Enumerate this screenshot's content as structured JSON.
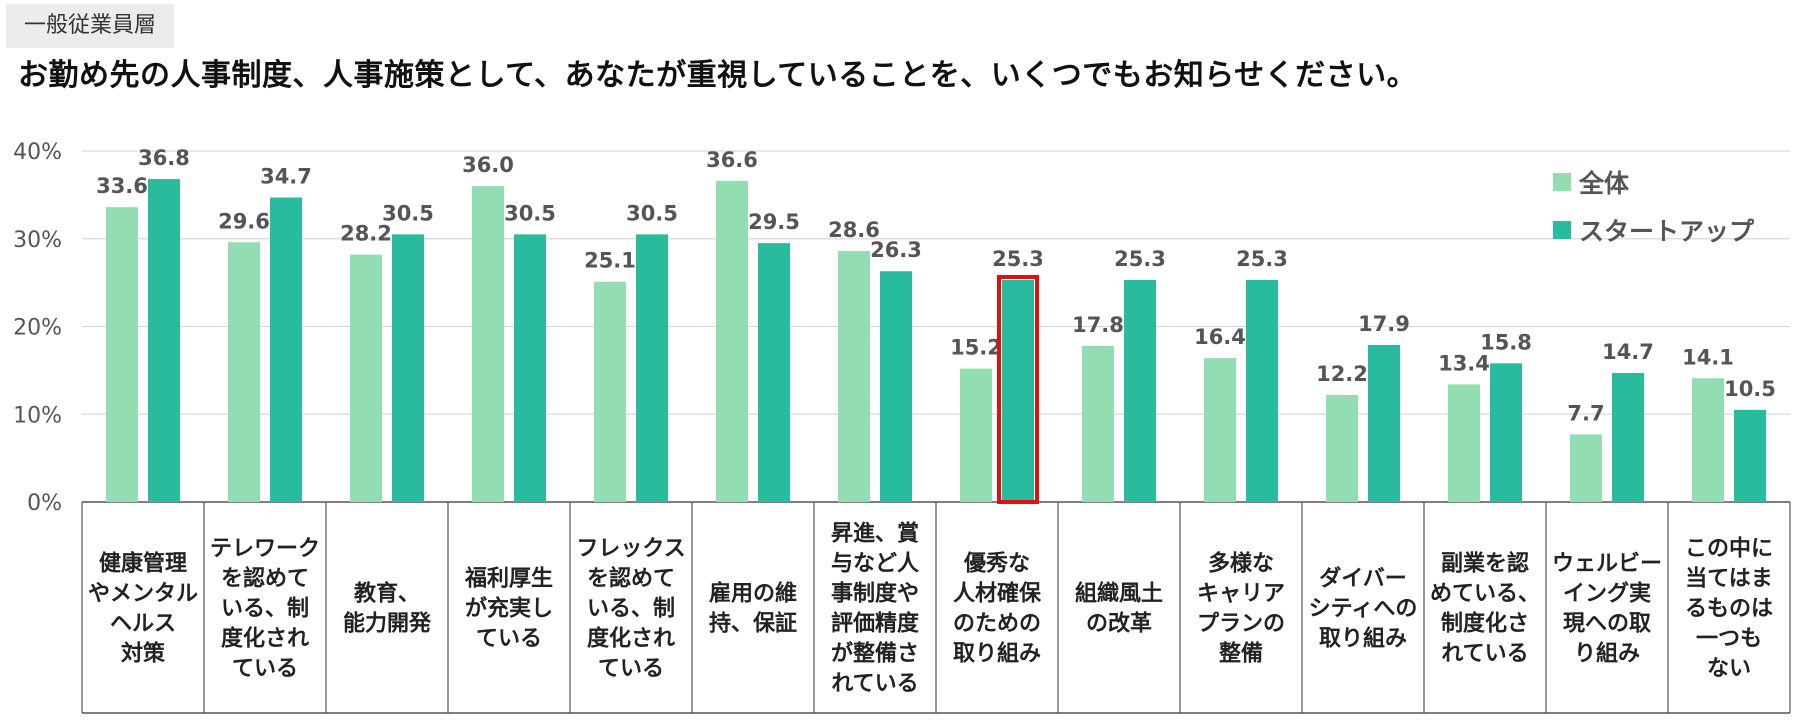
{
  "header": {
    "segment_tag": "一般従業員層",
    "question": "お勤め先の人事制度、人事施策として、あなたが重視していることを、いくつでもお知らせください。"
  },
  "colors": {
    "all": "#93ddb3",
    "startup": "#28bb9d",
    "highlight": "#e01010",
    "grid": "#d9d9d9"
  },
  "chart_data": {
    "type": "bar",
    "ylim": [
      0,
      40
    ],
    "yticks": [
      "0%",
      "10%",
      "20%",
      "30%",
      "40%"
    ],
    "grid": true,
    "legend_position": "top-right",
    "categories": [
      [
        "健康管理",
        "やメンタル",
        "ヘルス",
        "対策"
      ],
      [
        "テレワーク",
        "を認めて",
        "いる、制",
        "度化され",
        "ている"
      ],
      [
        "教育、",
        "能力開発"
      ],
      [
        "福利厚生",
        "が充実し",
        "ている"
      ],
      [
        "フレックス",
        "を認めて",
        "いる、制",
        "度化され",
        "ている"
      ],
      [
        "雇用の維",
        "持、保証"
      ],
      [
        "昇進、賞",
        "与など人",
        "事制度や",
        "評価精度",
        "が整備さ",
        "れている"
      ],
      [
        "優秀な",
        "人材確保",
        "のための",
        "取り組み"
      ],
      [
        "組織風土",
        "の改革"
      ],
      [
        "多様な",
        "キャリア",
        "プランの",
        "整備"
      ],
      [
        "ダイバー",
        "シティへの",
        "取り組み"
      ],
      [
        "副業を認",
        "めている、",
        "制度化さ",
        "れている"
      ],
      [
        "ウェルビー",
        "イング実",
        "現への取",
        "り組み"
      ],
      [
        "この中に",
        "当てはま",
        "るものは",
        "一つも",
        "ない"
      ]
    ],
    "series": [
      {
        "name": "全体",
        "values": [
          33.6,
          29.6,
          28.2,
          36.0,
          25.1,
          36.6,
          28.6,
          15.2,
          17.8,
          16.4,
          12.2,
          13.4,
          7.7,
          14.1
        ],
        "labels": [
          "33.6",
          "29.6",
          "28.2",
          "36.0",
          "25.1",
          "36.6",
          "28.6",
          "15.2",
          "17.8",
          "16.4",
          "12.2",
          "13.4",
          "7.7",
          "14.1"
        ]
      },
      {
        "name": "スタートアップ",
        "values": [
          36.8,
          34.7,
          30.5,
          30.5,
          30.5,
          29.5,
          26.3,
          25.3,
          25.3,
          25.3,
          17.9,
          15.8,
          14.7,
          10.5
        ],
        "labels": [
          "36.8",
          "34.7",
          "30.5",
          "30.5",
          "30.5",
          "29.5",
          "26.3",
          "25.3",
          "25.3",
          "25.3",
          "17.9",
          "15.8",
          "14.7",
          "10.5"
        ]
      }
    ],
    "highlight": {
      "series": 1,
      "category": 7
    }
  }
}
